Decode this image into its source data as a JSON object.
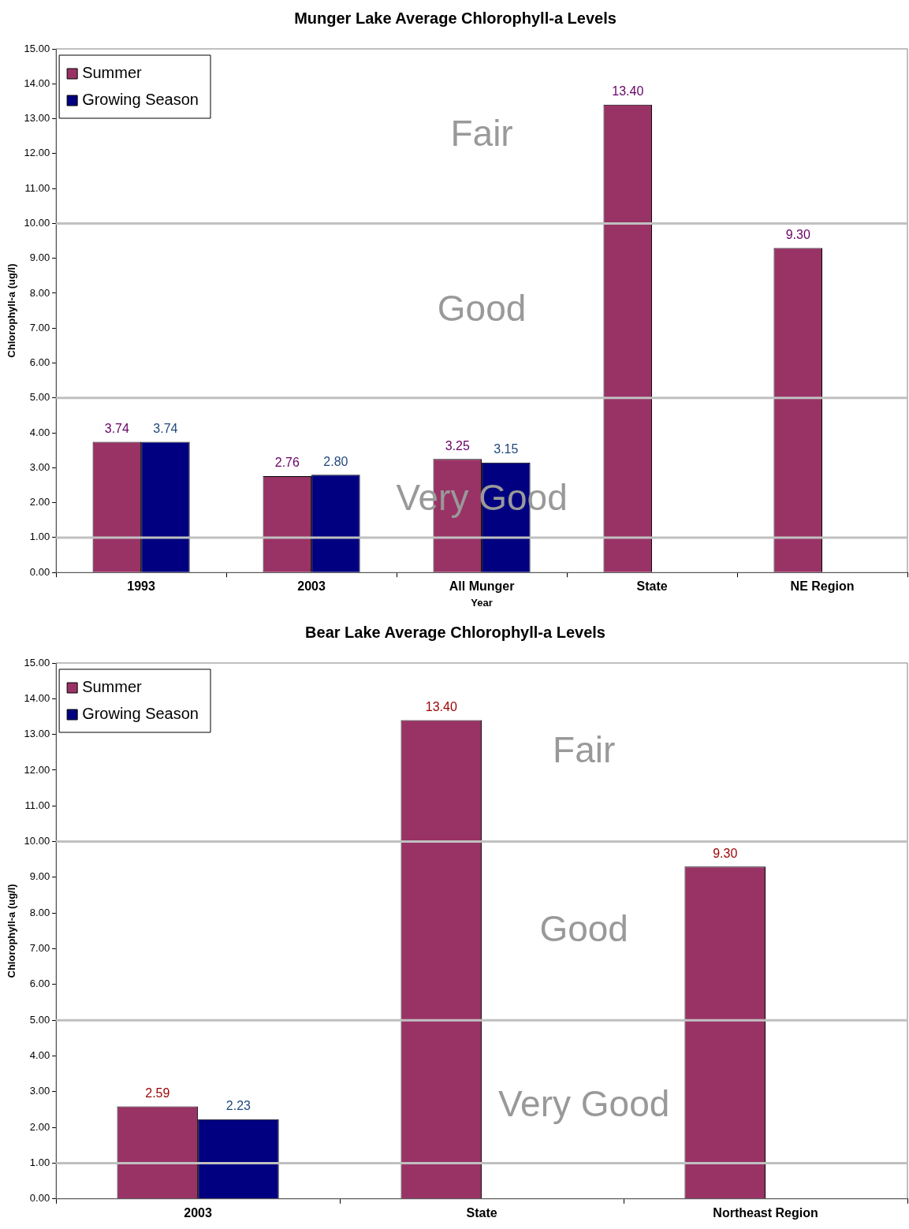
{
  "chart_data": [
    {
      "type": "bar",
      "title": "Munger Lake Average Chlorophyll-a Levels",
      "xlabel": "Year",
      "ylabel": "Chlorophyll-a (ug/l)",
      "categories": [
        "1993",
        "2003",
        "All Munger",
        "State",
        "NE Region"
      ],
      "series": [
        {
          "name": "Summer",
          "color": "#993366",
          "values": [
            3.74,
            2.76,
            3.25,
            13.4,
            9.3
          ],
          "value_labels": [
            "3.74",
            "2.76",
            "3.25",
            "13.40",
            "9.30"
          ]
        },
        {
          "name": "Growing Season",
          "color": "#000080",
          "values": [
            3.74,
            2.8,
            3.15,
            null,
            null
          ],
          "value_labels": [
            "3.74",
            "2.80",
            "3.15",
            null,
            null
          ]
        }
      ],
      "ylim": [
        0,
        15
      ],
      "yticks": [
        {
          "value": 0,
          "label": "0.00"
        },
        {
          "value": 1,
          "label": "1.00"
        },
        {
          "value": 2,
          "label": "2.00"
        },
        {
          "value": 3,
          "label": "3.00"
        },
        {
          "value": 4,
          "label": "4.00"
        },
        {
          "value": 5,
          "label": "5.00"
        },
        {
          "value": 6,
          "label": "6.00"
        },
        {
          "value": 7,
          "label": "7.00"
        },
        {
          "value": 8,
          "label": "8.00"
        },
        {
          "value": 9,
          "label": "9.00"
        },
        {
          "value": 10,
          "label": "10.00"
        },
        {
          "value": 11,
          "label": "11.00"
        },
        {
          "value": 12,
          "label": "12.00"
        },
        {
          "value": 13,
          "label": "13.00"
        },
        {
          "value": 14,
          "label": "14.00"
        },
        {
          "value": 15,
          "label": "15.00"
        }
      ],
      "ref_lines": [
        {
          "axis": "y",
          "value": 1,
          "color": "#c0c0c0"
        },
        {
          "axis": "y",
          "value": 5,
          "color": "#c0c0c0"
        },
        {
          "axis": "y",
          "value": 10,
          "color": "#c0c0c0"
        }
      ],
      "annotations": [
        "Fair",
        "Good",
        "Very Good"
      ],
      "legend": "top left"
    },
    {
      "type": "bar",
      "title": "Bear Lake Average Chlorophyll-a Levels",
      "ylabel": "Chlorophyll-a (ug/l)",
      "categories": [
        "2003",
        "State",
        "Northeast Region"
      ],
      "series": [
        {
          "name": "Summer",
          "color": "#993366",
          "values": [
            2.59,
            13.4,
            9.3
          ],
          "value_labels": [
            "2.59",
            "13.40",
            "9.30"
          ]
        },
        {
          "name": "Growing Season",
          "color": "#000080",
          "values": [
            2.23,
            null,
            null
          ],
          "value_labels": [
            "2.23",
            null,
            null
          ]
        }
      ],
      "ylim": [
        0,
        15
      ],
      "yticks": [
        {
          "value": 0,
          "label": "0.00"
        },
        {
          "value": 1,
          "label": "1.00"
        },
        {
          "value": 2,
          "label": "2.00"
        },
        {
          "value": 3,
          "label": "3.00"
        },
        {
          "value": 4,
          "label": "4.00"
        },
        {
          "value": 5,
          "label": "5.00"
        },
        {
          "value": 6,
          "label": "6.00"
        },
        {
          "value": 7,
          "label": "7.00"
        },
        {
          "value": 8,
          "label": "8.00"
        },
        {
          "value": 9,
          "label": "9.00"
        },
        {
          "value": 10,
          "label": "10.00"
        },
        {
          "value": 11,
          "label": "11.00"
        },
        {
          "value": 12,
          "label": "12.00"
        },
        {
          "value": 13,
          "label": "13.00"
        },
        {
          "value": 14,
          "label": "14.00"
        },
        {
          "value": 15,
          "label": "15.00"
        }
      ],
      "ref_lines": [
        {
          "axis": "y",
          "value": 1,
          "color": "#c0c0c0"
        },
        {
          "axis": "y",
          "value": 5,
          "color": "#c0c0c0"
        },
        {
          "axis": "y",
          "value": 10,
          "color": "#c0c0c0"
        }
      ],
      "annotations": [
        "Fair",
        "Good",
        "Very Good"
      ],
      "legend": "top left"
    }
  ]
}
